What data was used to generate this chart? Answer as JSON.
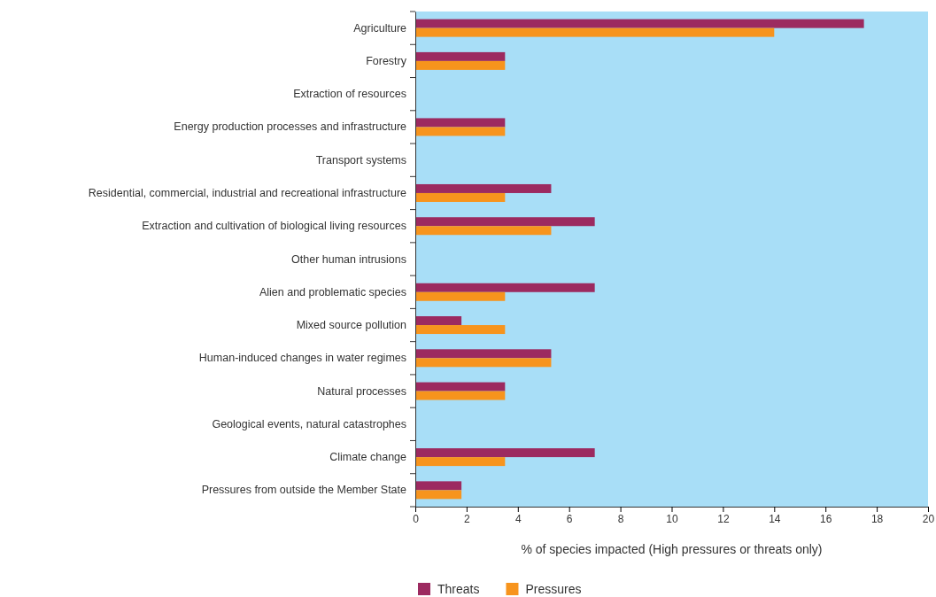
{
  "chart_data": {
    "type": "bar",
    "orientation": "horizontal",
    "xlabel": "% of species impacted (High pressures or threats only)",
    "categories": [
      "Agriculture",
      "Forestry",
      "Extraction of resources",
      "Energy production processes and infrastructure",
      "Transport systems",
      "Residential, commercial, industrial and recreational infrastructure",
      "Extraction and cultivation of biological living resources",
      "Other human intrusions",
      "Alien and problematic species",
      "Mixed source pollution",
      "Human-induced changes in water regimes",
      "Natural processes",
      "Geological events, natural catastrophes",
      "Climate change",
      "Pressures from outside the Member State"
    ],
    "series": [
      {
        "name": "Threats",
        "color": "#9c2a60",
        "values": [
          17.5,
          3.5,
          0,
          3.5,
          0,
          5.3,
          7.0,
          0,
          7.0,
          1.8,
          5.3,
          3.5,
          0,
          7.0,
          1.8
        ]
      },
      {
        "name": "Pressures",
        "color": "#f7941d",
        "values": [
          14.0,
          3.5,
          0,
          3.5,
          0,
          3.5,
          5.3,
          0,
          3.5,
          3.5,
          5.3,
          3.5,
          0,
          3.5,
          1.8
        ]
      }
    ],
    "xlim": [
      0,
      20
    ],
    "xticks": [
      0,
      2,
      4,
      6,
      8,
      10,
      12,
      14,
      16,
      18,
      20
    ],
    "grid": false,
    "legend": "bottom"
  }
}
